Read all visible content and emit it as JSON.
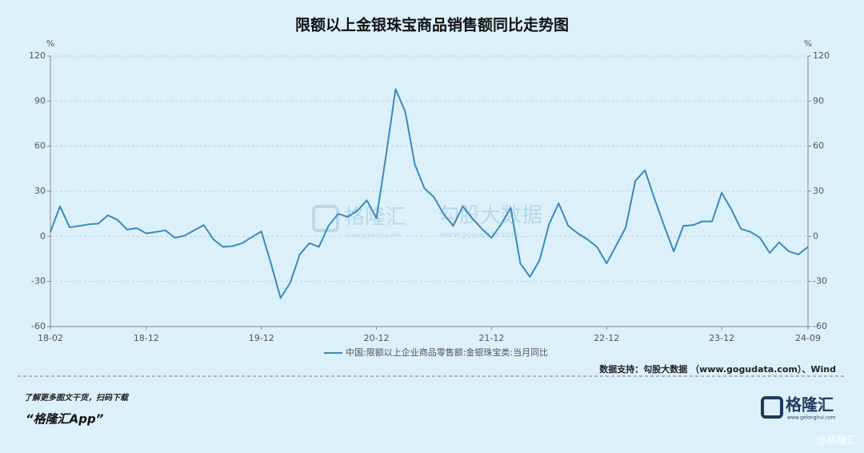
{
  "chart_data": {
    "type": "line",
    "title": "限额以上金银珠宝商品销售额同比走势图",
    "y_label": "%",
    "y2_label": "%",
    "categories": [
      "18-02",
      null,
      null,
      null,
      null,
      null,
      null,
      null,
      null,
      null,
      "18-12",
      null,
      null,
      null,
      null,
      null,
      null,
      null,
      null,
      null,
      null,
      null,
      "19-12",
      null,
      null,
      null,
      null,
      null,
      null,
      null,
      null,
      null,
      null,
      null,
      "20-12",
      null,
      null,
      null,
      null,
      null,
      null,
      null,
      null,
      null,
      null,
      null,
      "21-12",
      null,
      null,
      null,
      null,
      null,
      null,
      null,
      null,
      null,
      null,
      null,
      "22-12",
      null,
      null,
      null,
      null,
      null,
      null,
      null,
      null,
      null,
      null,
      null,
      "23-12",
      null,
      null,
      null,
      null,
      null,
      null,
      null,
      null,
      "24-09"
    ],
    "series": [
      {
        "name": "中国:限额以上企业商品零售额:金银珠宝类:当月同比",
        "color": "#3a8bb8",
        "values": [
          3,
          20,
          6,
          7,
          8,
          8.5,
          14,
          11,
          4.5,
          5.5,
          2,
          3,
          4,
          -1,
          0.5,
          4,
          7.5,
          -2,
          -7,
          -6.5,
          -4.5,
          -0.5,
          3.3,
          -18,
          -41,
          -31,
          -12,
          -4.5,
          -7,
          7,
          15,
          13,
          17,
          24,
          12,
          54,
          98,
          83,
          48,
          32,
          26,
          15,
          7,
          20,
          12,
          5,
          -1,
          8,
          19,
          -18,
          -27,
          -16,
          8,
          22,
          7,
          2,
          -2,
          -7,
          -18,
          -6,
          6,
          37,
          44,
          25,
          7,
          -10,
          7,
          7.5,
          10,
          10,
          29,
          18,
          5,
          3,
          -1,
          -11,
          -4,
          -10,
          -12,
          -7
        ]
      }
    ],
    "ylim": [
      -60,
      120
    ],
    "yticks": [
      -60,
      -30,
      0,
      30,
      60,
      90,
      120
    ],
    "y2lim": [
      -60,
      120
    ],
    "y2ticks": [
      -60,
      -30,
      0,
      30,
      60,
      90,
      120
    ],
    "grid": true,
    "source": "数据支持：勾股大数据 （www.gogudata.com）、Wind"
  },
  "watermarks": {
    "brand": "格隆汇",
    "brand_url": "www.gelonghui.com",
    "partner": "勾股大数据",
    "partner_url": "www.gogudata.com",
    "corner": "@格隆汇"
  },
  "footer": {
    "note": "了解更多图文干货，扫码下载",
    "app": "“格隆汇App”",
    "logo": "格隆汇",
    "logo_url": "www.gelonghui.com"
  }
}
